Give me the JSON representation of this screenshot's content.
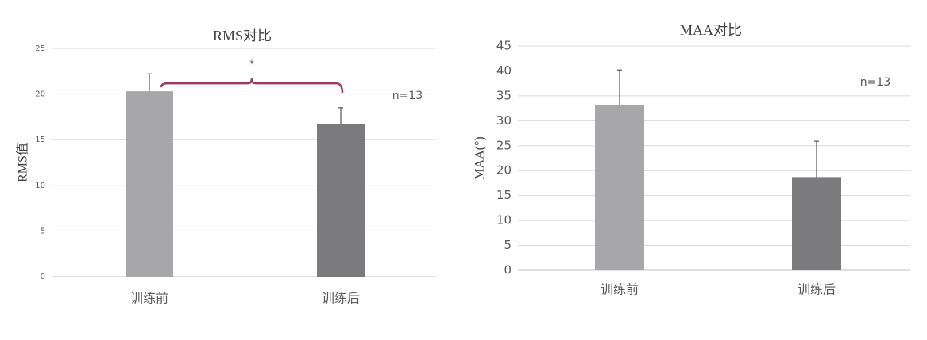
{
  "chart_data": [
    {
      "type": "bar",
      "title": "RMS对比",
      "y_label": "RMS值",
      "categories": [
        "训练前",
        "训练后"
      ],
      "values": [
        20.3,
        16.7
      ],
      "errors": [
        1.9,
        1.8
      ],
      "colors": [
        "#a7a6a8",
        "#7b7a7c"
      ],
      "ylim": [
        0,
        25
      ],
      "yticks": [
        0,
        5,
        10,
        15,
        20,
        25
      ],
      "grid": true,
      "significance": "*",
      "sample_note": "n=13"
    },
    {
      "type": "bar",
      "title": "MAA对比",
      "y_label": "MAA(°)",
      "categories": [
        "训练前",
        "训练后"
      ],
      "values": [
        33.1,
        18.7
      ],
      "errors": [
        7.1,
        7.2
      ],
      "colors": [
        "#a7a6a8",
        "#7b7a7c"
      ],
      "ylim": [
        0,
        45
      ],
      "yticks": [
        0,
        5,
        10,
        15,
        20,
        25,
        30,
        35,
        40,
        45
      ],
      "grid": true,
      "sample_note": "n=13"
    }
  ]
}
